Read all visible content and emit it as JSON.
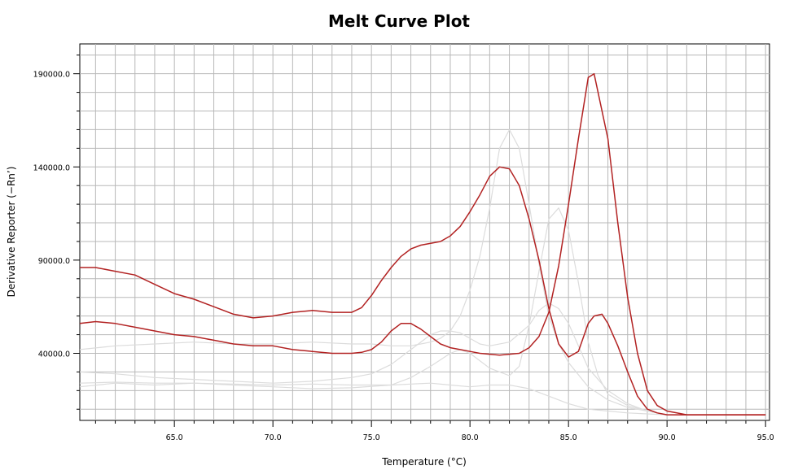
{
  "chart_data": {
    "type": "line",
    "title": "Melt Curve Plot",
    "xlabel": "Temperature (°C)",
    "ylabel": "Derivative Reporter (−Rn’)",
    "xlim": [
      60.2,
      95.2
    ],
    "ylim": [
      4000,
      206000
    ],
    "x_ticks": [
      65.0,
      70.0,
      75.0,
      80.0,
      85.0,
      90.0,
      95.0
    ],
    "x_tick_labels": [
      "65.0",
      "70.0",
      "75.0",
      "80.0",
      "85.0",
      "90.0",
      "95.0"
    ],
    "y_ticks": [
      40000,
      90000,
      140000,
      190000
    ],
    "y_tick_labels": [
      "40000.0",
      "90000.0",
      "140000.0",
      "190000.0"
    ],
    "grid": true,
    "legend": "none",
    "colors": {
      "highlight": "#b22222",
      "background_series": "#dcdcdc",
      "grid": "#b8b8b8",
      "axis": "#000000"
    },
    "series": [
      {
        "highlighted": true,
        "x": [
          60.2,
          61,
          62,
          63,
          64,
          65,
          66,
          67,
          68,
          69,
          70,
          71,
          72,
          73,
          74,
          74.5,
          75,
          75.5,
          76,
          76.5,
          77,
          77.5,
          78,
          78.5,
          79,
          79.5,
          80,
          80.5,
          81,
          81.5,
          82,
          82.5,
          83,
          83.5,
          84,
          84.5,
          85,
          85.5,
          86,
          86.3,
          86.7,
          87,
          87.5,
          88,
          88.5,
          89,
          89.5,
          90,
          91,
          92,
          93,
          94,
          95
        ],
        "y": [
          86000,
          86000,
          84000,
          82000,
          77000,
          72000,
          69000,
          65000,
          61000,
          59000,
          60000,
          62000,
          63000,
          62000,
          62000,
          64500,
          71000,
          79000,
          86000,
          92000,
          96000,
          98000,
          99000,
          100000,
          103000,
          108000,
          116000,
          125000,
          135000,
          140000,
          139000,
          130000,
          112000,
          90000,
          64000,
          45000,
          38000,
          41000,
          56000,
          60000,
          61000,
          56000,
          44000,
          30000,
          17000,
          10000,
          8000,
          7000,
          7000,
          7000,
          7000,
          7000,
          7000
        ]
      },
      {
        "highlighted": true,
        "x": [
          60.2,
          61,
          62,
          63,
          64,
          65,
          66,
          67,
          68,
          69,
          70,
          71,
          72,
          73,
          74,
          74.5,
          75,
          75.5,
          76,
          76.5,
          77,
          77.5,
          78,
          78.5,
          79,
          79.5,
          80,
          80.5,
          81,
          81.5,
          82,
          82.5,
          83,
          83.5,
          84,
          84.5,
          85,
          85.5,
          86,
          86.3,
          86.6,
          87,
          87.5,
          88,
          88.5,
          89,
          89.5,
          90,
          91,
          92,
          93,
          94,
          95
        ],
        "y": [
          56000,
          57000,
          56000,
          54000,
          52000,
          50000,
          49000,
          47000,
          45000,
          44000,
          44000,
          42000,
          41000,
          40000,
          40000,
          40500,
          42000,
          46000,
          52000,
          56000,
          56000,
          53000,
          49000,
          45000,
          43000,
          42000,
          41000,
          40000,
          39500,
          39000,
          39500,
          40000,
          43000,
          49000,
          62000,
          87000,
          120000,
          155000,
          188000,
          190000,
          175000,
          155000,
          110000,
          70000,
          40000,
          20000,
          12000,
          9000,
          7000,
          7000,
          7000,
          7000,
          7000
        ]
      },
      {
        "highlighted": false,
        "x": [
          60.2,
          62,
          64,
          66,
          68,
          70,
          72,
          74,
          75,
          76,
          77,
          77.5,
          78,
          78.5,
          79,
          79.5,
          80,
          80.5,
          81,
          81.5,
          82,
          82.5,
          83,
          83.5,
          84,
          84.5,
          85,
          86,
          87,
          88,
          89,
          90,
          91,
          92,
          93,
          94,
          95
        ],
        "y": [
          42000,
          44000,
          45000,
          46000,
          45000,
          45000,
          46000,
          45000,
          45000,
          44000,
          44000,
          45000,
          46000,
          48000,
          52000,
          60000,
          74000,
          92000,
          118000,
          150000,
          160000,
          150000,
          120000,
          88000,
          60000,
          45000,
          35000,
          22000,
          15000,
          11000,
          9000,
          7000,
          7000,
          7000,
          7000,
          7000,
          7000
        ]
      },
      {
        "highlighted": false,
        "x": [
          60.2,
          62,
          64,
          66,
          68,
          70,
          72,
          74,
          76,
          77,
          78,
          79,
          79.5,
          80,
          81,
          82,
          82.5,
          83,
          83.5,
          84,
          84.5,
          85,
          85.5,
          86,
          86.5,
          87,
          88,
          89,
          90,
          91,
          92,
          93,
          94,
          95
        ],
        "y": [
          22000,
          24000,
          23000,
          24000,
          23000,
          22000,
          21000,
          21500,
          23000,
          27000,
          33000,
          40000,
          42000,
          40000,
          32000,
          28000,
          33000,
          55000,
          84000,
          112000,
          118000,
          106000,
          78000,
          46000,
          28000,
          18000,
          12000,
          9000,
          7000,
          7000,
          7000,
          7000,
          7000,
          7000
        ]
      },
      {
        "highlighted": false,
        "x": [
          60.2,
          62,
          64,
          66,
          68,
          70,
          72,
          74,
          75,
          76,
          77,
          78,
          78.5,
          79,
          79.5,
          80,
          80.5,
          81,
          82,
          83,
          83.5,
          84,
          84.5,
          85,
          85.5,
          86,
          87,
          88,
          89,
          90,
          91,
          92,
          93,
          94,
          95
        ],
        "y": [
          30000,
          29000,
          27000,
          26000,
          25000,
          24000,
          25000,
          27000,
          29000,
          34000,
          42000,
          50000,
          52000,
          52000,
          51000,
          48000,
          45000,
          44000,
          46000,
          55000,
          63000,
          67000,
          64000,
          56000,
          44000,
          32000,
          20000,
          13000,
          9000,
          7000,
          7000,
          7000,
          7000,
          7000,
          7000
        ]
      },
      {
        "highlighted": false,
        "x": [
          60.2,
          62,
          64,
          66,
          68,
          70,
          72,
          74,
          76,
          77,
          78,
          79,
          80,
          81,
          82,
          83,
          84,
          85,
          86,
          87,
          88,
          89,
          90,
          92,
          95
        ],
        "y": [
          24000,
          24500,
          24000,
          24000,
          23500,
          23000,
          23500,
          23000,
          23000,
          23500,
          24000,
          23000,
          22000,
          23000,
          23000,
          21000,
          17000,
          13000,
          10000,
          9000,
          8000,
          7500,
          7000,
          7000,
          7000
        ]
      }
    ]
  }
}
